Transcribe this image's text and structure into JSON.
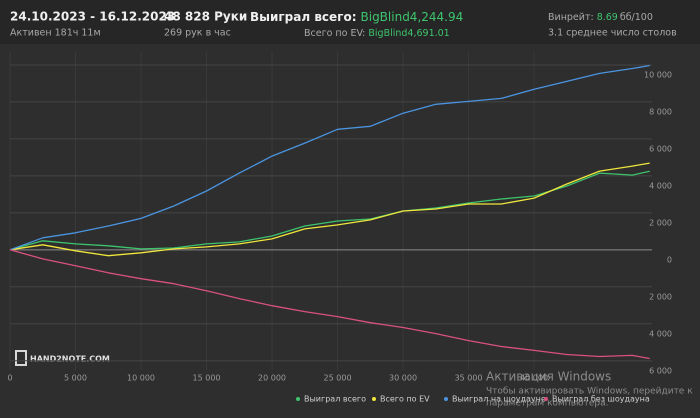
{
  "header": {
    "date_range": "24.10.2023 - 16.12.2023",
    "active": "Активен 181ч 11м",
    "hands": "48 828 Руки",
    "hands_per_hour": "269 рук в час",
    "won_label": "Выиграл всего:",
    "won_value": "BigBlind4,244.94",
    "ev_label": "Всего по EV:",
    "ev_value": "BigBlind4,691.01",
    "winrate_label": "Винрейт:",
    "winrate_value": "8.69",
    "winrate_unit": "бб/100",
    "tables": "3.1 среднее число столов"
  },
  "watermark": "HAND2NOTE.COM",
  "windows_notice": {
    "title": "Активация Windows",
    "text1": "Чтобы активировать Windows, перейдите к",
    "text2": "параметрам компьютера."
  },
  "chart_data": {
    "type": "line",
    "x": [
      0,
      2500,
      5000,
      7500,
      10000,
      12500,
      15000,
      17500,
      20000,
      22500,
      25000,
      27500,
      30000,
      32500,
      35000,
      37500,
      40000,
      42500,
      45000,
      47500,
      48828
    ],
    "xlim": [
      0,
      49000
    ],
    "xticks": [
      0,
      {
        "value": 5000,
        "label": "5 000"
      },
      {
        "value": 10000,
        "label": "10 000"
      },
      {
        "value": 15000,
        "label": "15 000"
      },
      {
        "value": 20000,
        "label": "20 000"
      },
      {
        "value": 25000,
        "label": "25 000"
      },
      {
        "value": 30000,
        "label": "30 000"
      },
      {
        "value": 35000,
        "label": "35 000"
      },
      {
        "value": 40000,
        "label": "40 000"
      }
    ],
    "ylim": [
      -6500,
      10700
    ],
    "yticks": [
      {
        "value": -6000,
        "label": "6 000"
      },
      {
        "value": -4000,
        "label": "4 000"
      },
      {
        "value": -2000,
        "label": "2 000"
      },
      0,
      {
        "value": 2000,
        "label": "2 000"
      },
      {
        "value": 4000,
        "label": "4 000"
      },
      {
        "value": 6000,
        "label": "6 000"
      },
      {
        "value": 8000,
        "label": "8 000"
      },
      {
        "value": 10000,
        "label": "10 000"
      }
    ],
    "grid": true,
    "series": [
      {
        "name": "Выиграл всего",
        "color": "#3ec46d",
        "values": [
          0,
          490,
          320,
          220,
          50,
          100,
          320,
          430,
          750,
          1290,
          1560,
          1670,
          2100,
          2260,
          2530,
          2750,
          2910,
          3450,
          4150,
          4040,
          4245
        ]
      },
      {
        "name": "Всего по EV",
        "color": "#f0e63c",
        "values": [
          0,
          270,
          -50,
          -320,
          -160,
          50,
          160,
          320,
          590,
          1130,
          1350,
          1620,
          2100,
          2210,
          2480,
          2480,
          2800,
          3560,
          4260,
          4530,
          4691
        ]
      },
      {
        "name": "Выиграл на шоудауне",
        "color": "#4a94e0",
        "values": [
          0,
          650,
          920,
          1290,
          1700,
          2370,
          3180,
          4150,
          5070,
          5770,
          6520,
          6680,
          7390,
          7870,
          8030,
          8190,
          8680,
          9110,
          9540,
          9810,
          9970
        ]
      },
      {
        "name": "Выиграл без шоудауна",
        "color": "#d9517e",
        "values": [
          0,
          -490,
          -860,
          -1240,
          -1560,
          -1830,
          -2210,
          -2640,
          -3020,
          -3340,
          -3610,
          -3940,
          -4200,
          -4530,
          -4910,
          -5230,
          -5440,
          -5660,
          -5770,
          -5710,
          -5880
        ]
      }
    ]
  }
}
